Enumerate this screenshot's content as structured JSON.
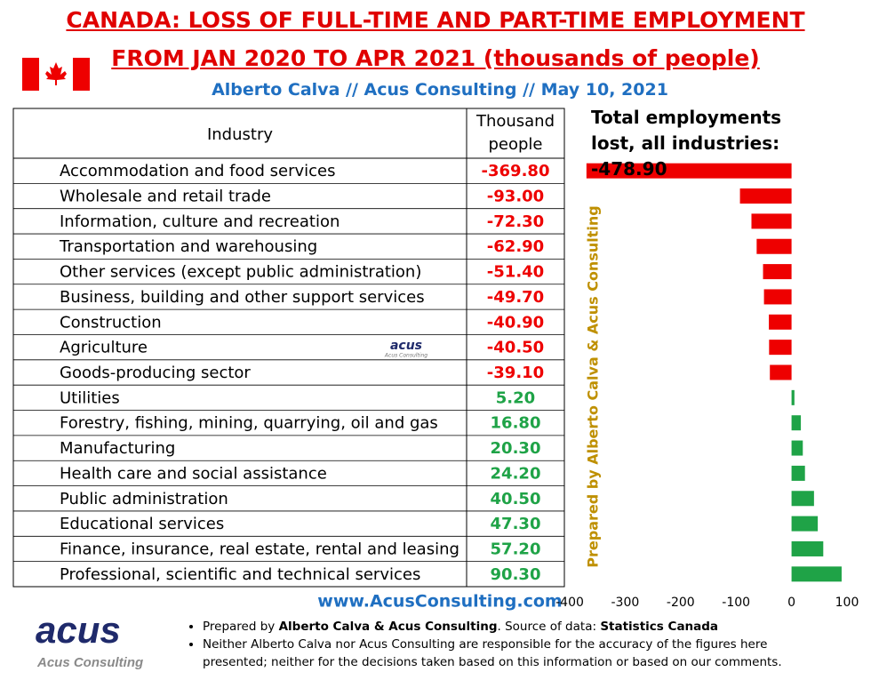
{
  "header": {
    "title_lines": [
      "CANADA: LOSS OF FULL-TIME AND PART-TIME EMPLOYMENT",
      "FROM JAN 2020 TO APR 2021 (thousands of people)"
    ],
    "subtitle": "Alberto Calva // Acus Consulting // May 10, 2021"
  },
  "table": {
    "columns": [
      "Industry",
      "Thousand people"
    ],
    "watermark": {
      "name": "acus",
      "tagline": "Acus Consulting"
    }
  },
  "chart_data": {
    "type": "bar",
    "orientation": "horizontal",
    "title": "Total employments lost, all industries: -478.90",
    "side_note": "Prepared by Alberto Calva & Acus Consulting",
    "categories": [
      "Accommodation and food services",
      "Wholesale and retail trade",
      "Information, culture and recreation",
      "Transportation and warehousing",
      "Other services (except public administration)",
      "Business, building and other support services",
      "Construction",
      "Agriculture",
      "Goods-producing sector",
      "Utilities",
      "Forestry, fishing, mining, quarrying, oil and gas",
      "Manufacturing",
      "Health care and social assistance",
      "Public administration",
      "Educational services",
      "Finance, insurance, real estate, rental and leasing",
      "Professional, scientific and technical services"
    ],
    "values": [
      -369.8,
      -93.0,
      -72.3,
      -62.9,
      -51.4,
      -49.7,
      -40.9,
      -40.5,
      -39.1,
      5.2,
      16.8,
      20.3,
      24.2,
      40.5,
      47.3,
      57.2,
      90.3
    ],
    "value_labels": [
      "-369.80",
      "-93.00",
      "-72.30",
      "-62.90",
      "-51.40",
      "-49.70",
      "-40.90",
      "-40.50",
      "-39.10",
      "5.20",
      "16.80",
      "20.30",
      "24.20",
      "40.50",
      "47.30",
      "57.20",
      "90.30"
    ],
    "negative_color": "#ee0000",
    "positive_color": "#1fa347",
    "xlim": [
      -400,
      100
    ],
    "xticks": [
      -400,
      -300,
      -200,
      -100,
      0,
      100
    ],
    "grid": false
  },
  "footer": {
    "website": "www.AcusConsulting.com",
    "logo": {
      "name": "acus",
      "tagline": "Acus Consulting"
    },
    "notes": [
      [
        {
          "text": "Prepared by ",
          "bold": false
        },
        {
          "text": "Alberto Calva & Acus Consulting",
          "bold": true
        },
        {
          "text": ". Source of data: ",
          "bold": false
        },
        {
          "text": "Statistics Canada",
          "bold": true
        }
      ],
      [
        {
          "text": "Neither Alberto Calva nor Acus Consulting are responsible for the accuracy of the figures here presented; neither for the decisions taken based on this information or based on our comments.",
          "bold": false
        }
      ]
    ]
  }
}
